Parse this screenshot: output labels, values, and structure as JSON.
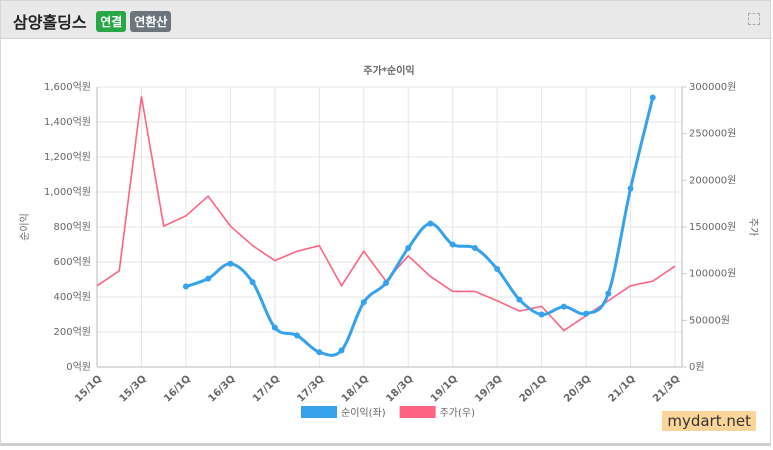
{
  "header": {
    "title": "삼양홀딩스",
    "badges": [
      "연결",
      "연환산"
    ]
  },
  "watermark": "mydart.net",
  "chart_data": {
    "type": "line",
    "title": "주가*순이익",
    "y_label": "순이익",
    "y2_label": "주가",
    "categories": [
      "15/1Q",
      null,
      "15/3Q",
      null,
      "16/1Q",
      null,
      "16/3Q",
      null,
      "17/1Q",
      null,
      "17/3Q",
      null,
      "18/1Q",
      null,
      "18/3Q",
      null,
      "19/1Q",
      null,
      "19/3Q",
      null,
      "20/1Q",
      null,
      "20/3Q",
      null,
      "21/1Q",
      null,
      "21/3Q"
    ],
    "series": [
      {
        "name": "순이익(좌)",
        "color": "#36a2eb",
        "axis": "y",
        "smooth": true,
        "values": [
          null,
          null,
          null,
          null,
          460,
          505,
          590,
          485,
          225,
          180,
          85,
          95,
          370,
          480,
          680,
          820,
          700,
          680,
          560,
          385,
          300,
          345,
          305,
          420,
          1020,
          1540,
          null
        ]
      },
      {
        "name": "주가(우)",
        "color": "#ff6384",
        "axis": "y2",
        "smooth": false,
        "values": [
          87000,
          103000,
          290000,
          151000,
          162000,
          183000,
          151000,
          130000,
          114000,
          124000,
          130000,
          87000,
          124000,
          92000,
          119000,
          97000,
          81000,
          81000,
          71000,
          60000,
          65000,
          39000,
          55000,
          71000,
          87000,
          92000,
          108000
        ]
      }
    ],
    "ylim": [
      0,
      1600
    ],
    "yticks": [
      {
        "value": 0,
        "label": "0억원"
      },
      {
        "value": 200,
        "label": "200억원"
      },
      {
        "value": 400,
        "label": "400억원"
      },
      {
        "value": 600,
        "label": "600억원"
      },
      {
        "value": 800,
        "label": "800억원"
      },
      {
        "value": 1000,
        "label": "1,000억원"
      },
      {
        "value": 1200,
        "label": "1,200억원"
      },
      {
        "value": 1400,
        "label": "1,400억원"
      },
      {
        "value": 1600,
        "label": "1,600억원"
      }
    ],
    "y2lim": [
      0,
      300000
    ],
    "y2ticks": [
      {
        "value": 0,
        "label": "0원"
      },
      {
        "value": 50000,
        "label": "50000원"
      },
      {
        "value": 100000,
        "label": "100000원"
      },
      {
        "value": 150000,
        "label": "150000원"
      },
      {
        "value": 200000,
        "label": "200000원"
      },
      {
        "value": 250000,
        "label": "250000원"
      },
      {
        "value": 300000,
        "label": "300000원"
      }
    ],
    "grid": true
  }
}
